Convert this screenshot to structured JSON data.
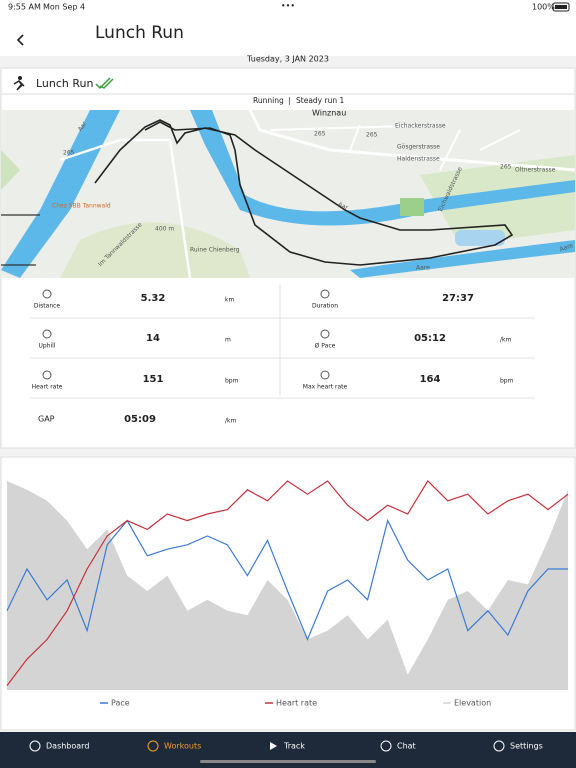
{
  "status_bar": {
    "time": "9:55 AM",
    "date": "Mon Sep 4",
    "battery": "100%"
  },
  "header": {
    "title": "Lunch Run"
  },
  "workout": {
    "date": "Tuesday, 3 JAN 2023",
    "name": "Lunch Run",
    "sport": "Running",
    "separator": "|",
    "plan": "Steady run 1"
  },
  "map": {
    "labels": [
      "Winznau",
      "Eichackerstrasse",
      "Gösgerstrasse",
      "Haldenstrasse",
      "Oltnerstrasse",
      "Eichwaldstrasse",
      "Aare",
      "Aar",
      "Aar",
      "Aare",
      "Chez SBB Tannwald",
      "Ruine Chienberg",
      "Im Tannwaldstrasse",
      "265",
      "265",
      "265",
      "265",
      "400 m"
    ]
  },
  "stats": [
    {
      "label": "Distance",
      "value": "5.32",
      "unit": "km"
    },
    {
      "label": "Duration",
      "value": "27:37"
    },
    {
      "label": "Uphill",
      "value": "14",
      "unit": "m"
    },
    {
      "label": "Ø Pace",
      "value": "05:12",
      "unit": "/km"
    },
    {
      "label": "Heart rate",
      "value": "151",
      "unit": "bpm"
    },
    {
      "label": "Max heart rate",
      "value": "164",
      "unit": "bpm"
    },
    {
      "label": "GAP",
      "value": "05:09",
      "unit": "/km"
    }
  ],
  "chart_data": {
    "type": "line",
    "ylim": [
      0,
      100
    ],
    "series": [
      {
        "name": "Pace",
        "color": "#3a7bd5",
        "values": [
          36,
          55,
          41,
          50,
          27,
          66,
          77,
          61,
          64,
          66,
          70,
          66,
          52,
          68,
          45,
          23,
          45,
          50,
          41,
          77,
          59,
          50,
          55,
          27,
          36,
          25,
          45,
          55,
          55
        ]
      },
      {
        "name": "Heart rate",
        "color": "#c8303a",
        "values": [
          2,
          14,
          23,
          36,
          55,
          70,
          77,
          73,
          80,
          77,
          80,
          82,
          91,
          86,
          95,
          89,
          95,
          84,
          77,
          84,
          80,
          95,
          86,
          89,
          80,
          86,
          89,
          82,
          89
        ]
      },
      {
        "name": "Elevation",
        "color": "#d4d4d4",
        "fill": true,
        "values": [
          95,
          91,
          86,
          77,
          64,
          73,
          52,
          45,
          52,
          36,
          41,
          36,
          34,
          50,
          41,
          23,
          27,
          34,
          23,
          32,
          7,
          23,
          41,
          45,
          36,
          50,
          48,
          68,
          91
        ]
      }
    ]
  },
  "tab_bar": {
    "tabs": [
      "Dashboard",
      "Workouts",
      "Track",
      "Chat",
      "Settings"
    ],
    "active": 1
  }
}
